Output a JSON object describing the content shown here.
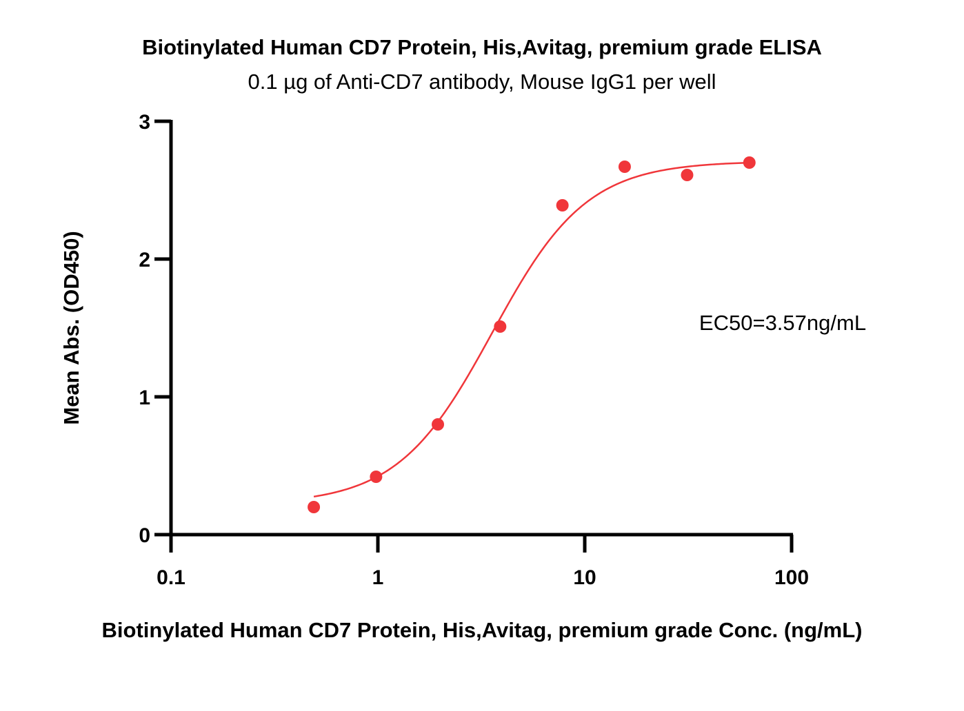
{
  "chart_data": {
    "type": "scatter",
    "title": "Biotinylated Human CD7 Protein, His,Avitag, premium grade ELISA",
    "subtitle": "0.1 µg of Anti-CD7 antibody, Mouse IgG1 per well",
    "xlabel": "Biotinylated Human CD7 Protein, His,Avitag, premium grade Conc. (ng/mL)",
    "ylabel": "Mean Abs. (OD450)",
    "x_scale": "log",
    "xlim": [
      0.1,
      100
    ],
    "ylim": [
      0,
      3
    ],
    "x_ticks": [
      0.1,
      1,
      10,
      100
    ],
    "x_tick_labels": [
      "0.1",
      "1",
      "10",
      "100"
    ],
    "y_ticks": [
      0,
      1,
      2,
      3
    ],
    "y_tick_labels": [
      "0",
      "1",
      "2",
      "3"
    ],
    "series": [
      {
        "color": "#f0363a",
        "x": [
          0.49,
          0.98,
          1.95,
          3.9,
          7.8,
          15.6,
          31.25,
          62.5
        ],
        "y": [
          0.2,
          0.42,
          0.8,
          1.51,
          2.39,
          2.67,
          2.61,
          2.7
        ]
      }
    ],
    "fit": {
      "model": "4PL",
      "bottom": 0.22,
      "top": 2.71,
      "ec50": 3.57,
      "hill": 1.9,
      "x_range": [
        0.49,
        62.5
      ],
      "color": "#f0363a"
    },
    "annotation": "EC50=3.57ng/mL",
    "grid": false
  }
}
